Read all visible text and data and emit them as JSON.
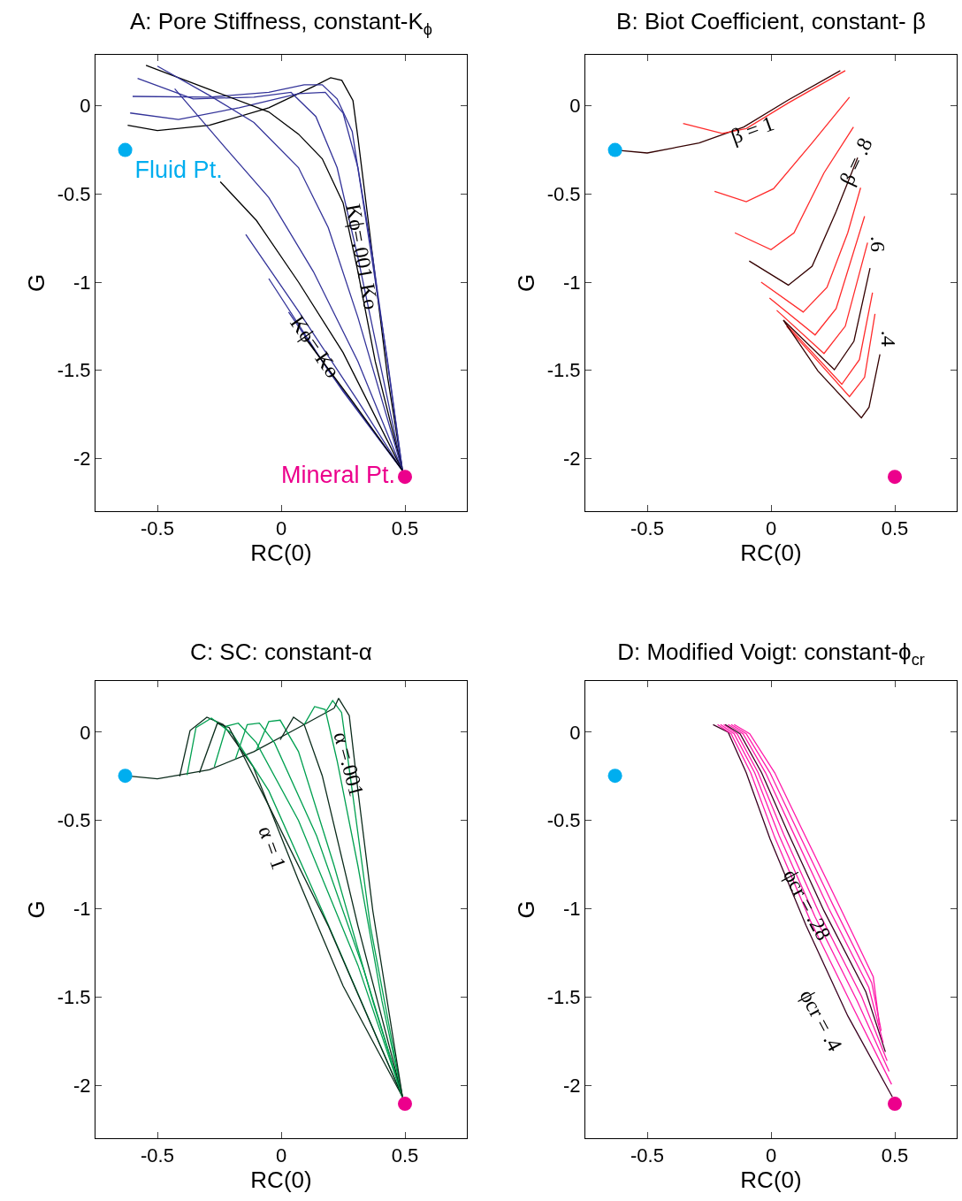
{
  "chart_data": [
    {
      "type": "line",
      "title": "A: Pore Stiffness, constant-K$_{ϕ}$",
      "xlabel": "RC(0)",
      "ylabel": "G",
      "xlim": [
        -0.75,
        0.75
      ],
      "ylim": [
        -2.3,
        0.29
      ],
      "xticks": [
        -0.5,
        0,
        0.5
      ],
      "yticks": [
        0,
        -0.5,
        -1,
        -1.5,
        -2
      ],
      "grid": false,
      "legend": false,
      "line_style": "solid",
      "series": [
        {
          "color": "#000000",
          "x": [
            -0.62,
            -0.5,
            -0.29,
            -0.05,
            0.13,
            0.2,
            0.245,
            0.29,
            0.31,
            0.37,
            0.43,
            0.49
          ],
          "values": [
            -0.11,
            -0.14,
            -0.11,
            -0.01,
            0.11,
            0.16,
            0.145,
            0.03,
            -0.18,
            -0.86,
            -1.54,
            -2.07
          ]
        },
        {
          "color": "#333399",
          "x": [
            -0.6,
            -0.29,
            -0.05,
            0.093,
            0.166,
            0.226,
            0.287,
            0.347,
            0.43,
            0.49
          ],
          "values": [
            0.054,
            0.05,
            0.077,
            0.12,
            0.12,
            0.04,
            -0.145,
            -0.69,
            -1.45,
            -2.07
          ]
        },
        {
          "color": "#333399",
          "x": [
            -0.61,
            -0.415,
            -0.17,
            0.07,
            0.178,
            0.25,
            0.31,
            0.37,
            0.49
          ],
          "values": [
            -0.04,
            -0.077,
            -0.01,
            0.07,
            0.077,
            -0.04,
            -0.35,
            -0.86,
            -2.07
          ]
        },
        {
          "color": "#333399",
          "x": [
            -0.58,
            -0.355,
            -0.11,
            0.04,
            0.14,
            0.226,
            0.31,
            0.49
          ],
          "values": [
            0.156,
            0.04,
            0.05,
            0.077,
            -0.06,
            -0.35,
            -0.86,
            -2.07
          ]
        },
        {
          "color": "#000000",
          "x": [
            -0.546,
            -0.29,
            -0.05,
            0.07,
            0.166,
            0.25,
            0.31,
            0.38,
            0.49
          ],
          "values": [
            0.23,
            0.094,
            -0.034,
            -0.16,
            -0.3,
            -0.55,
            -0.94,
            -1.45,
            -2.07
          ]
        },
        {
          "color": "#333399",
          "x": [
            -0.5,
            -0.29,
            -0.11,
            0.07,
            0.19,
            0.31,
            0.49
          ],
          "values": [
            0.226,
            0.06,
            -0.094,
            -0.35,
            -0.69,
            -1.2,
            -2.07
          ]
        },
        {
          "color": "#333399",
          "x": [
            -0.43,
            -0.23,
            -0.05,
            0.13,
            0.31,
            0.49
          ],
          "values": [
            0.097,
            -0.23,
            -0.52,
            -0.94,
            -1.45,
            -2.07
          ]
        },
        {
          "color": "#000000",
          "x": [
            -0.246,
            -0.1,
            0.07,
            0.25,
            0.49
          ],
          "values": [
            -0.43,
            -0.65,
            -1.0,
            -1.4,
            -2.07
          ]
        },
        {
          "color": "#333399",
          "x": [
            -0.143,
            0.07,
            0.31,
            0.49
          ],
          "values": [
            -0.73,
            -1.165,
            -1.675,
            -2.07
          ]
        },
        {
          "color": "#333399",
          "x": [
            -0.05,
            0.19,
            0.49
          ],
          "values": [
            -0.98,
            -1.5,
            -2.07
          ]
        },
        {
          "color": "#333399",
          "x": [
            0.03,
            0.25,
            0.49
          ],
          "values": [
            -1.17,
            -1.62,
            -2.07
          ]
        },
        {
          "color": "#000000",
          "x": [
            0.093,
            0.287,
            0.49
          ],
          "values": [
            -1.31,
            -1.675,
            -2.07
          ]
        },
        {
          "type": "scatter",
          "name": "Fluid Pt.",
          "color": "#00aeef",
          "marker": "circle",
          "x": [
            -0.63
          ],
          "values": [
            -0.25
          ]
        },
        {
          "type": "scatter",
          "name": "Mineral Pt.",
          "color": "#ec008c",
          "marker": "circle",
          "x": [
            0.5
          ],
          "values": [
            -2.105
          ]
        }
      ],
      "annotations": [
        "Kϕ=.001 Ko",
        "Kϕ= Ko"
      ]
    },
    {
      "type": "line",
      "title": "B: Biot Coefficient, constant- β",
      "xlabel": "RC(0)",
      "ylabel": "G",
      "xlim": [
        -0.75,
        0.75
      ],
      "ylim": [
        -2.3,
        0.29
      ],
      "xticks": [
        -0.5,
        0,
        0.5
      ],
      "yticks": [
        0,
        -0.5,
        -1,
        -1.5,
        -2
      ],
      "grid": false,
      "legend": false,
      "line_style": "solid",
      "series": [
        {
          "color": "#330000",
          "x": [
            -0.63,
            -0.5,
            -0.29,
            -0.11,
            0.07,
            0.28
          ],
          "values": [
            -0.25,
            -0.267,
            -0.21,
            -0.12,
            0.034,
            0.2
          ]
        },
        {
          "color": "#ff2a2a",
          "x": [
            -0.355,
            -0.197,
            -0.1,
            0.07,
            0.3
          ],
          "values": [
            -0.1,
            -0.156,
            -0.128,
            0.017,
            0.2
          ]
        },
        {
          "color": "#ff2a2a",
          "x": [
            -0.228,
            -0.1,
            0.01,
            0.166,
            0.317
          ],
          "values": [
            -0.485,
            -0.544,
            -0.47,
            -0.21,
            0.05
          ]
        },
        {
          "color": "#ff2a2a",
          "x": [
            -0.146,
            0,
            0.093,
            0.214,
            0.333
          ],
          "values": [
            -0.72,
            -0.816,
            -0.72,
            -0.38,
            -0.12
          ]
        },
        {
          "color": "#330000",
          "x": [
            -0.088,
            0.07,
            0.166,
            0.263,
            0.35
          ],
          "values": [
            -0.88,
            -1.017,
            -0.91,
            -0.6,
            -0.294
          ]
        },
        {
          "color": "#ff2a2a",
          "x": [
            -0.04,
            0.13,
            0.226,
            0.31,
            0.362
          ],
          "values": [
            -1.0,
            -1.17,
            -1.03,
            -0.72,
            -0.464
          ]
        },
        {
          "color": "#ff2a2a",
          "x": [
            -0.006,
            0.178,
            0.263,
            0.378
          ],
          "values": [
            -1.09,
            -1.3,
            -1.15,
            -0.626
          ]
        },
        {
          "color": "#ff2a2a",
          "x": [
            0.023,
            0.214,
            0.3,
            0.39
          ],
          "values": [
            -1.16,
            -1.405,
            -1.25,
            -0.776
          ]
        },
        {
          "color": "#330000",
          "x": [
            0.05,
            0.256,
            0.335,
            0.4
          ],
          "values": [
            -1.216,
            -1.497,
            -1.335,
            -0.92
          ]
        },
        {
          "color": "#ff2a2a",
          "x": [
            0.057,
            0.286,
            0.357,
            0.41
          ],
          "values": [
            -1.233,
            -1.58,
            -1.44,
            -1.06
          ]
        },
        {
          "color": "#ff2a2a",
          "x": [
            0.063,
            0.317,
            0.378,
            0.42
          ],
          "values": [
            -1.25,
            -1.65,
            -1.54,
            -1.18
          ]
        },
        {
          "color": "#330000",
          "x": [
            0.05,
            0.19,
            0.365,
            0.396,
            0.44
          ],
          "values": [
            -1.216,
            -1.505,
            -1.77,
            -1.71,
            -1.41
          ]
        },
        {
          "type": "scatter",
          "color": "#00aeef",
          "marker": "circle",
          "x": [
            -0.63
          ],
          "values": [
            -0.25
          ]
        },
        {
          "type": "scatter",
          "color": "#ec008c",
          "marker": "circle",
          "x": [
            0.5
          ],
          "values": [
            -2.105
          ]
        }
      ],
      "annotations": [
        "β = 1",
        "β = .8",
        ".6",
        ".4"
      ]
    },
    {
      "type": "line",
      "title": "C: SC: constant-α",
      "xlabel": "RC(0)",
      "ylabel": "G",
      "xlim": [
        -0.75,
        0.75
      ],
      "ylim": [
        -2.3,
        0.29
      ],
      "xticks": [
        -0.5,
        0,
        0.5
      ],
      "yticks": [
        0,
        -0.5,
        -1,
        -1.5,
        -2
      ],
      "grid": false,
      "legend": false,
      "line_style": "solid",
      "series": [
        {
          "color": "#0a2a1a",
          "x": [
            -0.63,
            -0.5,
            -0.29,
            -0.11,
            0.07,
            0.214
          ],
          "values": [
            -0.247,
            -0.264,
            -0.213,
            -0.11,
            0.026,
            0.136
          ]
        },
        {
          "color": "#0a2a1a",
          "x": [
            -0.41,
            -0.368,
            -0.3,
            -0.234,
            -0.113,
            0.07,
            0.25,
            0.49
          ],
          "values": [
            -0.25,
            0.009,
            0.085,
            0.043,
            -0.196,
            -0.84,
            -1.437,
            -2.066
          ]
        },
        {
          "color": "#00a050",
          "x": [
            -0.38,
            -0.344,
            -0.282,
            -0.197,
            -0.05,
            0.166,
            0.49
          ],
          "values": [
            -0.243,
            0.026,
            0.08,
            -0.009,
            -0.332,
            -1.012,
            -2.066
          ]
        },
        {
          "color": "#0a2a1a",
          "x": [
            -0.33,
            -0.258,
            -0.21,
            -0.05,
            0.19,
            0.49
          ],
          "values": [
            -0.23,
            0.05,
            0.026,
            -0.417,
            -1.097,
            -2.066
          ]
        },
        {
          "color": "#00a050",
          "x": [
            -0.27,
            -0.221,
            -0.173,
            -0.1,
            0.07,
            0.31,
            0.49
          ],
          "values": [
            -0.196,
            0.034,
            0.051,
            -0.06,
            -0.5,
            -1.32,
            -2.066
          ]
        },
        {
          "color": "#00a050",
          "x": [
            -0.185,
            -0.137,
            -0.088,
            -0.027,
            0.143,
            0.335,
            0.49
          ],
          "values": [
            -0.153,
            0.043,
            0.051,
            -0.06,
            -0.587,
            -1.352,
            -2.066
          ]
        },
        {
          "color": "#00a050",
          "x": [
            -0.1,
            -0.05,
            -0.004,
            0.07,
            0.214,
            0.37,
            0.49
          ],
          "values": [
            -0.102,
            0.06,
            0.068,
            -0.11,
            -0.757,
            -1.522,
            -2.066
          ]
        },
        {
          "color": "#0a2a1a",
          "x": [
            -0.004,
            0.05,
            0.093,
            0.166,
            0.31,
            0.49
          ],
          "values": [
            -0.043,
            0.085,
            0.043,
            -0.247,
            -1.097,
            -2.066
          ]
        },
        {
          "color": "#00a050",
          "x": [
            0.093,
            0.135,
            0.178,
            0.226,
            0.31,
            0.407,
            0.49
          ],
          "values": [
            0.043,
            0.145,
            0.128,
            -0.162,
            -0.757,
            -1.522,
            -2.066
          ]
        },
        {
          "color": "#00a050",
          "x": [
            0.178,
            0.208,
            0.244,
            0.287,
            0.36,
            0.49
          ],
          "values": [
            0.111,
            0.179,
            0.111,
            -0.332,
            -1.097,
            -2.066
          ]
        },
        {
          "color": "#0a2a1a",
          "x": [
            0.214,
            0.232,
            0.275,
            0.31,
            0.37,
            0.49
          ],
          "values": [
            0.136,
            0.192,
            0.094,
            -0.33,
            -1.01,
            -2.066
          ]
        },
        {
          "type": "scatter",
          "color": "#00aeef",
          "marker": "circle",
          "x": [
            -0.63
          ],
          "values": [
            -0.247
          ]
        },
        {
          "type": "scatter",
          "color": "#ec008c",
          "marker": "circle",
          "x": [
            0.5
          ],
          "values": [
            -2.105
          ]
        }
      ],
      "annotations": [
        "α =.001",
        "α = 1"
      ]
    },
    {
      "type": "line",
      "title": "D: Modified Voigt: constant-ϕ$_{cr}$",
      "xlabel": "RC(0)",
      "ylabel": "G",
      "xlim": [
        -0.75,
        0.75
      ],
      "ylim": [
        -2.3,
        0.29
      ],
      "xticks": [
        -0.5,
        0,
        0.5
      ],
      "yticks": [
        0,
        -0.5,
        -1,
        -1.5,
        -2
      ],
      "grid": false,
      "legend": false,
      "line_style": "solid",
      "series": [
        {
          "color": "#3a0020",
          "x": [
            -0.234,
            -0.173,
            -0.1,
            -0.004,
            0.142,
            0.31,
            0.49
          ],
          "values": [
            0.043,
            0,
            -0.23,
            -0.604,
            -1.097,
            -1.607,
            -2.066
          ]
        },
        {
          "color": "#ff1aaa",
          "x": [
            -0.216,
            -0.161,
            -0.082,
            0.015,
            0.16,
            0.33,
            0.487
          ],
          "values": [
            0.043,
            -0.009,
            -0.23,
            -0.596,
            -1.071,
            -1.556,
            -1.995
          ]
        },
        {
          "color": "#ff1aaa",
          "x": [
            -0.204,
            -0.149,
            -0.066,
            0.033,
            0.178,
            0.348,
            0.477
          ],
          "values": [
            0.043,
            -0.009,
            -0.23,
            -0.587,
            -1.046,
            -1.522,
            -1.922
          ]
        },
        {
          "color": "#ff1aaa",
          "x": [
            -0.191,
            -0.137,
            -0.052,
            0.051,
            0.196,
            0.366,
            0.469
          ],
          "values": [
            0.043,
            -0.009,
            -0.23,
            -0.578,
            -1.029,
            -1.497,
            -1.862
          ]
        },
        {
          "color": "#3a0020",
          "x": [
            -0.185,
            -0.125,
            -0.038,
            0.069,
            0.214,
            0.383,
            0.462
          ],
          "values": [
            0.043,
            -0.009,
            -0.23,
            -0.57,
            -1.012,
            -1.471,
            -1.811
          ]
        },
        {
          "color": "#ff1aaa",
          "x": [
            -0.173,
            -0.113,
            -0.022,
            0.087,
            0.232,
            0.395,
            0.453
          ],
          "values": [
            0.043,
            -0.009,
            -0.23,
            -0.561,
            -0.995,
            -1.446,
            -1.76
          ]
        },
        {
          "color": "#ff1aaa",
          "x": [
            -0.161,
            -0.1,
            -0.004,
            0.105,
            0.25,
            0.407,
            0.445
          ],
          "values": [
            0.043,
            -0.009,
            -0.23,
            -0.553,
            -0.978,
            -1.42,
            -1.692
          ]
        },
        {
          "color": "#ff1aaa",
          "x": [
            -0.149,
            -0.086,
            0.015,
            0.123,
            0.268,
            0.413,
            0.438
          ],
          "values": [
            0.043,
            -0.009,
            -0.23,
            -0.544,
            -0.961,
            -1.386,
            -1.658
          ]
        },
        {
          "type": "scatter",
          "color": "#00aeef",
          "marker": "circle",
          "x": [
            -0.63
          ],
          "values": [
            -0.247
          ]
        },
        {
          "type": "scatter",
          "color": "#ec008c",
          "marker": "circle",
          "x": [
            0.5
          ],
          "values": [
            -2.105
          ]
        }
      ],
      "annotations": [
        "ϕcr = .28",
        "ϕcr = .4"
      ]
    }
  ]
}
